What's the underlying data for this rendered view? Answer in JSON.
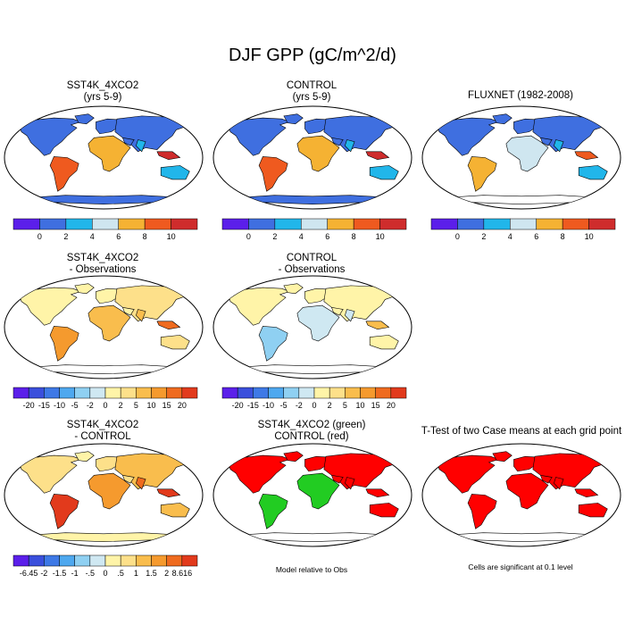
{
  "title": "DJF GPP (gC/m^2/d)",
  "colors": {
    "ocean": "#ffffff",
    "coast": "#000000",
    "abs_scale": [
      "#5b1fea",
      "#3f6fe0",
      "#21b6ea",
      "#cfe6f0",
      "#f5b233",
      "#ef5a1f",
      "#cf2c2c"
    ],
    "diff_scale": [
      "#5b1fea",
      "#3a4fdc",
      "#3e79e6",
      "#4ea8ef",
      "#8fd0f2",
      "#cfe8f2",
      "#fff4a8",
      "#fde08a",
      "#f9bd4d",
      "#f59a2e",
      "#ef6b1f",
      "#e23a1c",
      "#c9282a"
    ],
    "sig_red": "#ff0000",
    "green": "#22cc22"
  },
  "chart_data": [
    {
      "type": "heatmap",
      "title": "SST4K_4XCO2",
      "subtitle": "(yrs 5-9)",
      "colorbar": {
        "levels": [
          0,
          2,
          4,
          6,
          8,
          10
        ],
        "labels": [
          "0",
          "2",
          "4",
          "6",
          "8",
          "10"
        ]
      }
    },
    {
      "type": "heatmap",
      "title": "CONTROL",
      "subtitle": "(yrs 5-9)",
      "colorbar": {
        "levels": [
          0,
          2,
          4,
          6,
          8,
          10
        ],
        "labels": [
          "0",
          "2",
          "4",
          "6",
          "8",
          "10"
        ]
      }
    },
    {
      "type": "heatmap",
      "title": "FLUXNET (1982-2008)",
      "subtitle": "",
      "colorbar": {
        "levels": [
          0,
          2,
          4,
          6,
          8,
          10
        ],
        "labels": [
          "0",
          "2",
          "4",
          "6",
          "8",
          "10"
        ]
      }
    },
    {
      "type": "heatmap",
      "title": "SST4K_4XCO2",
      "subtitle": "- Observations",
      "colorbar": {
        "levels": [
          -20,
          -15,
          -10,
          -5,
          -2,
          0,
          2,
          5,
          10,
          15,
          20
        ],
        "labels": [
          "-20",
          "-15",
          "-10",
          "-5",
          "-2",
          "0",
          "2",
          "5",
          "10",
          "15",
          "20"
        ]
      }
    },
    {
      "type": "heatmap",
      "title": "CONTROL",
      "subtitle": "- Observations",
      "colorbar": {
        "levels": [
          -20,
          -15,
          -10,
          -5,
          -2,
          0,
          2,
          5,
          10,
          15,
          20
        ],
        "labels": [
          "-20",
          "-15",
          "-10",
          "-5",
          "-2",
          "0",
          "2",
          "5",
          "10",
          "15",
          "20"
        ]
      }
    },
    {
      "type": "heatmap",
      "title": "SST4K_4XCO2",
      "subtitle": "- CONTROL",
      "colorbar": {
        "levels": [
          -6.45,
          -2,
          -1.5,
          -1,
          -0.5,
          0,
          0.5,
          1,
          1.5,
          2,
          8.616
        ],
        "labels": [
          "-6.45",
          "-2",
          "-1.5",
          "-1",
          "-.5",
          "0",
          ".5",
          "1",
          "1.5",
          "2",
          "8.616"
        ]
      }
    },
    {
      "type": "heatmap",
      "title": "SST4K_4XCO2 (green)",
      "subtitle": "CONTROL (red)",
      "note": "Model relative to Obs"
    },
    {
      "type": "heatmap",
      "title": "T-Test of two Case means at each grid point",
      "subtitle": "",
      "note": "Cells are significant at 0.1 level"
    }
  ]
}
